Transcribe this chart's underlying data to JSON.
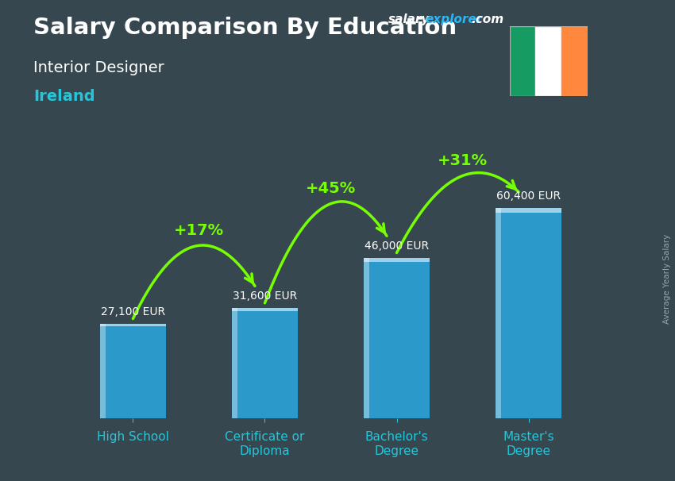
{
  "title_main": "Salary Comparison By Education",
  "subtitle1": "Interior Designer",
  "subtitle2": "Ireland",
  "categories": [
    "High School",
    "Certificate or\nDiploma",
    "Bachelor's\nDegree",
    "Master's\nDegree"
  ],
  "values": [
    27100,
    31600,
    46000,
    60400
  ],
  "value_labels": [
    "27,100 EUR",
    "31,600 EUR",
    "46,000 EUR",
    "60,400 EUR"
  ],
  "pct_labels": [
    "+17%",
    "+45%",
    "+31%"
  ],
  "bar_color": "#29b6f6",
  "bar_alpha": 0.75,
  "bg_color": "#37474f",
  "bg_color2": "#263238",
  "title_color": "#ffffff",
  "subtitle1_color": "#ffffff",
  "subtitle2_color": "#26c6da",
  "value_label_color": "#ffffff",
  "pct_color": "#76ff03",
  "arrow_color": "#76ff03",
  "xlabel_color": "#26c6da",
  "site_salary_color": "#ffffff",
  "site_explorer_color": "#29b6f6",
  "site_com_color": "#ffffff",
  "right_label": "Average Yearly Salary",
  "right_label_color": "#90a4ae",
  "flag_green": "#169b62",
  "flag_white": "#ffffff",
  "flag_orange": "#ff883e",
  "ylim": [
    0,
    80000
  ],
  "bar_width": 0.5
}
